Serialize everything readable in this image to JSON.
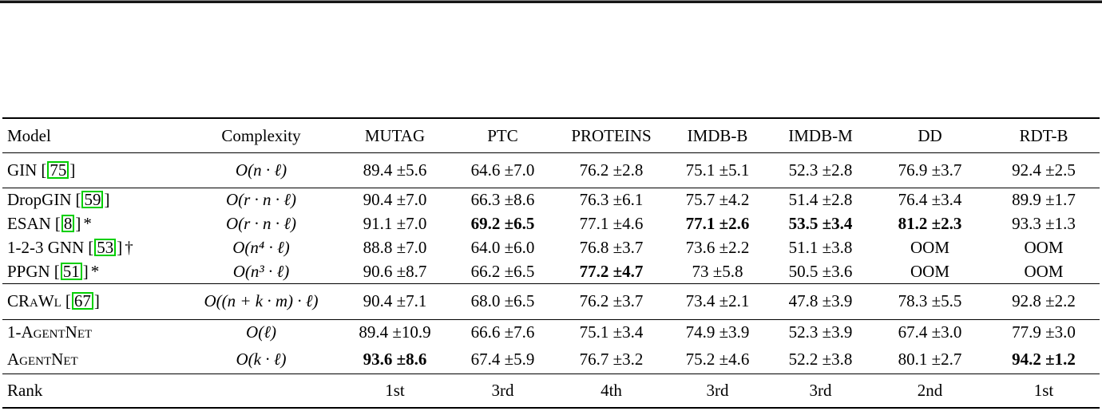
{
  "meta": {
    "citation_box_color": "#00cf00",
    "text_color": "#000000",
    "background_color": "#ffffff"
  },
  "table": {
    "columns": [
      "Model",
      "Complexity",
      "MUTAG",
      "PTC",
      "PROTEINS",
      "IMDB-B",
      "IMDB-M",
      "DD",
      "RDT-B"
    ],
    "column_slugs": [
      "model",
      "complexity",
      "mutag",
      "ptc",
      "proteins",
      "imdb-b",
      "imdb-m",
      "dd",
      "rdt-b"
    ],
    "groups": [
      {
        "name": "baseline",
        "rows": [
          {
            "model": {
              "text": "GIN",
              "smallcaps": false,
              "cite_open": "[",
              "cite": "75",
              "cite_close": "]",
              "suffix": ""
            },
            "complexity": "O(n · ℓ)",
            "values": [
              {
                "text": "89.4 ±5.6",
                "bold": false
              },
              {
                "text": "64.6 ±7.0",
                "bold": false
              },
              {
                "text": "76.2 ±2.8",
                "bold": false
              },
              {
                "text": "75.1 ±5.1",
                "bold": false
              },
              {
                "text": "52.3 ±2.8",
                "bold": false
              },
              {
                "text": "76.9 ±3.7",
                "bold": false
              },
              {
                "text": "92.4 ±2.5",
                "bold": false
              }
            ]
          }
        ]
      },
      {
        "name": "expressive",
        "rows": [
          {
            "model": {
              "text": "DropGIN",
              "smallcaps": false,
              "cite_open": "[",
              "cite": "59",
              "cite_close": "]",
              "suffix": ""
            },
            "complexity": "O(r · n · ℓ)",
            "values": [
              {
                "text": "90.4 ±7.0",
                "bold": false
              },
              {
                "text": "66.3 ±8.6",
                "bold": false
              },
              {
                "text": "76.3 ±6.1",
                "bold": false
              },
              {
                "text": "75.7 ±4.2",
                "bold": false
              },
              {
                "text": "51.4 ±2.8",
                "bold": false
              },
              {
                "text": "76.4 ±3.4",
                "bold": false
              },
              {
                "text": "89.9 ±1.7",
                "bold": false
              }
            ]
          },
          {
            "model": {
              "text": "ESAN",
              "smallcaps": false,
              "cite_open": "[",
              "cite": "8",
              "cite_close": "]",
              "suffix": "*"
            },
            "complexity": "O(r · n · ℓ)",
            "values": [
              {
                "text": "91.1 ±7.0",
                "bold": false
              },
              {
                "text": "69.2 ±6.5",
                "bold": true
              },
              {
                "text": "77.1 ±4.6",
                "bold": false
              },
              {
                "text": "77.1 ±2.6",
                "bold": true
              },
              {
                "text": "53.5 ±3.4",
                "bold": true
              },
              {
                "text": "81.2 ±2.3",
                "bold": true
              },
              {
                "text": "93.3 ±1.3",
                "bold": false
              }
            ]
          },
          {
            "model": {
              "text": "1-2-3 GNN",
              "smallcaps": false,
              "cite_open": "[",
              "cite": "53",
              "cite_close": "]",
              "suffix": "†"
            },
            "complexity": "O(n⁴ · ℓ)",
            "values": [
              {
                "text": "88.8 ±7.0",
                "bold": false
              },
              {
                "text": "64.0 ±6.0",
                "bold": false
              },
              {
                "text": "76.8 ±3.7",
                "bold": false
              },
              {
                "text": "73.6 ±2.2",
                "bold": false
              },
              {
                "text": "51.1 ±3.8",
                "bold": false
              },
              {
                "text": "OOM",
                "bold": false
              },
              {
                "text": "OOM",
                "bold": false
              }
            ]
          },
          {
            "model": {
              "text": "PPGN",
              "smallcaps": false,
              "cite_open": "[",
              "cite": "51",
              "cite_close": "]",
              "suffix": "*"
            },
            "complexity": "O(n³ · ℓ)",
            "values": [
              {
                "text": "90.6 ±8.7",
                "bold": false
              },
              {
                "text": "66.2 ±6.5",
                "bold": false
              },
              {
                "text": "77.2 ±4.7",
                "bold": true
              },
              {
                "text": "73 ±5.8",
                "bold": false
              },
              {
                "text": "50.5 ±3.6",
                "bold": false
              },
              {
                "text": "OOM",
                "bold": false
              },
              {
                "text": "OOM",
                "bold": false
              }
            ]
          }
        ]
      },
      {
        "name": "walk",
        "rows": [
          {
            "model": {
              "text": "CRaWl",
              "smallcaps": true,
              "cite_open": "[",
              "cite": "67",
              "cite_close": "]",
              "suffix": ""
            },
            "complexity": "O((n + k · m) · ℓ)",
            "values": [
              {
                "text": "90.4 ±7.1",
                "bold": false
              },
              {
                "text": "68.0 ±6.5",
                "bold": false
              },
              {
                "text": "76.2 ±3.7",
                "bold": false
              },
              {
                "text": "73.4 ±2.1",
                "bold": false
              },
              {
                "text": "47.8 ±3.9",
                "bold": false
              },
              {
                "text": "78.3 ±5.5",
                "bold": false
              },
              {
                "text": "92.8 ±2.2",
                "bold": false
              }
            ]
          }
        ]
      },
      {
        "name": "agents",
        "rows": [
          {
            "model": {
              "text": "1-AgentNet",
              "smallcaps": true,
              "cite_open": "",
              "cite": "",
              "cite_close": "",
              "suffix": ""
            },
            "complexity": "O(ℓ)",
            "values": [
              {
                "text": "89.4 ±10.9",
                "bold": false
              },
              {
                "text": "66.6 ±7.6",
                "bold": false
              },
              {
                "text": "75.1 ±3.4",
                "bold": false
              },
              {
                "text": "74.9 ±3.9",
                "bold": false
              },
              {
                "text": "52.3 ±3.9",
                "bold": false
              },
              {
                "text": "67.4 ±3.0",
                "bold": false
              },
              {
                "text": "77.9 ±3.0",
                "bold": false
              }
            ]
          },
          {
            "model": {
              "text": "AgentNet",
              "smallcaps": true,
              "cite_open": "",
              "cite": "",
              "cite_close": "",
              "suffix": ""
            },
            "complexity": "O(k · ℓ)",
            "values": [
              {
                "text": "93.6 ±8.6",
                "bold": true
              },
              {
                "text": "67.4 ±5.9",
                "bold": false
              },
              {
                "text": "76.7 ±3.2",
                "bold": false
              },
              {
                "text": "75.2 ±4.6",
                "bold": false
              },
              {
                "text": "52.2 ±3.8",
                "bold": false
              },
              {
                "text": "80.1 ±2.7",
                "bold": false
              },
              {
                "text": "94.2 ±1.2",
                "bold": true
              }
            ]
          }
        ]
      },
      {
        "name": "rank",
        "rows": [
          {
            "model": {
              "text": "Rank",
              "smallcaps": false,
              "cite_open": "",
              "cite": "",
              "cite_close": "",
              "suffix": ""
            },
            "complexity": "",
            "values": [
              {
                "text": "1st",
                "bold": false
              },
              {
                "text": "3rd",
                "bold": false
              },
              {
                "text": "4th",
                "bold": false
              },
              {
                "text": "3rd",
                "bold": false
              },
              {
                "text": "3rd",
                "bold": false
              },
              {
                "text": "2nd",
                "bold": false
              },
              {
                "text": "1st",
                "bold": false
              }
            ]
          }
        ]
      }
    ]
  }
}
